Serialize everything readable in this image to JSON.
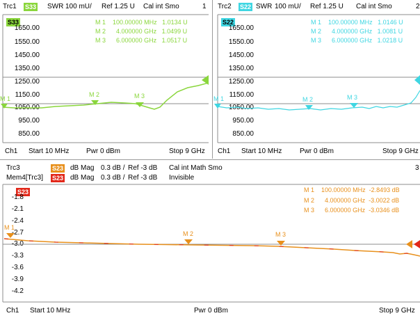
{
  "colors": {
    "s33": "#8ad63c",
    "s22": "#3fd6e2",
    "s23": "#e8901c",
    "mem": "#e2281a"
  },
  "top_left": {
    "header": {
      "trc": "Trc1",
      "tag": "S33",
      "format": "SWR",
      "scale": "100 mU/",
      "ref": "Ref 1.25 U",
      "flags": "Cal int Smo",
      "num": "1"
    },
    "badge": "S33",
    "y_labels": [
      "1650.00",
      "1550.00",
      "1450.00",
      "1350.00",
      "1250.00",
      "1150.00",
      "1050.00",
      "950.00",
      "850.00"
    ],
    "markers": [
      {
        "name": "M 1",
        "freq": "100.00000 MHz",
        "val": "1.0134 U"
      },
      {
        "name": "M 2",
        "freq": "4.000000 GHz",
        "val": "1.0499 U"
      },
      {
        "name": "M 3",
        "freq": "6.000000 GHz",
        "val": "1.0517 U"
      }
    ],
    "trace_markers": [
      "M 1",
      "M 2",
      "M 3"
    ],
    "footer": {
      "ch": "Ch1",
      "start": "Start 10 MHz",
      "pwr": "Pwr 0 dBm",
      "stop": "Stop 9 GHz"
    }
  },
  "top_right": {
    "header": {
      "trc": "Trc2",
      "tag": "S22",
      "format": "SWR",
      "scale": "100 mU/",
      "ref": "Ref 1.25 U",
      "flags": "Cal int Smo",
      "num": "2"
    },
    "badge": "S22",
    "y_labels": [
      "1650.00",
      "1550.00",
      "1450.00",
      "1350.00",
      "1250.00",
      "1150.00",
      "1050.00",
      "950.00",
      "850.00"
    ],
    "markers": [
      {
        "name": "M 1",
        "freq": "100.00000 MHz",
        "val": "1.0146 U"
      },
      {
        "name": "M 2",
        "freq": "4.000000 GHz",
        "val": "1.0081 U"
      },
      {
        "name": "M 3",
        "freq": "6.000000 GHz",
        "val": "1.0218 U"
      }
    ],
    "trace_markers": [
      "M 1",
      "M 2",
      "M 3"
    ],
    "footer": {
      "ch": "Ch1",
      "start": "Start 10 MHz",
      "pwr": "Pwr 0 dBm",
      "stop": "Stop 9 GHz"
    }
  },
  "bottom": {
    "header1": {
      "trc": "Trc3",
      "tag": "S23",
      "format": "dB Mag",
      "scale": "0.3 dB /",
      "ref": "Ref -3 dB",
      "flags": "Cal int Math Smo",
      "num": "3"
    },
    "header2": {
      "trc": "Mem4[Trc3]",
      "tag": "S23",
      "format": "dB Mag",
      "scale": "0.3 dB /",
      "ref": "Ref -3 dB",
      "flags": "Invisible"
    },
    "badge": "S23",
    "y_labels": [
      "-1.8",
      "-2.1",
      "-2.4",
      "-2.7",
      "-3.0",
      "-3.3",
      "-3.6",
      "-3.9",
      "-4.2"
    ],
    "markers": [
      {
        "name": "M 1",
        "freq": "100.00000 MHz",
        "val": "-2.8493 dB"
      },
      {
        "name": "M 2",
        "freq": "4.000000 GHz",
        "val": "-3.0022 dB"
      },
      {
        "name": "M 3",
        "freq": "6.000000 GHz",
        "val": "-3.0346 dB"
      }
    ],
    "trace_markers": [
      "M 1",
      "M 2",
      "M 3"
    ],
    "footer": {
      "ch": "Ch1",
      "start": "Start 10 MHz",
      "pwr": "Pwr 0 dBm",
      "stop": "Stop 9 GHz"
    }
  }
}
